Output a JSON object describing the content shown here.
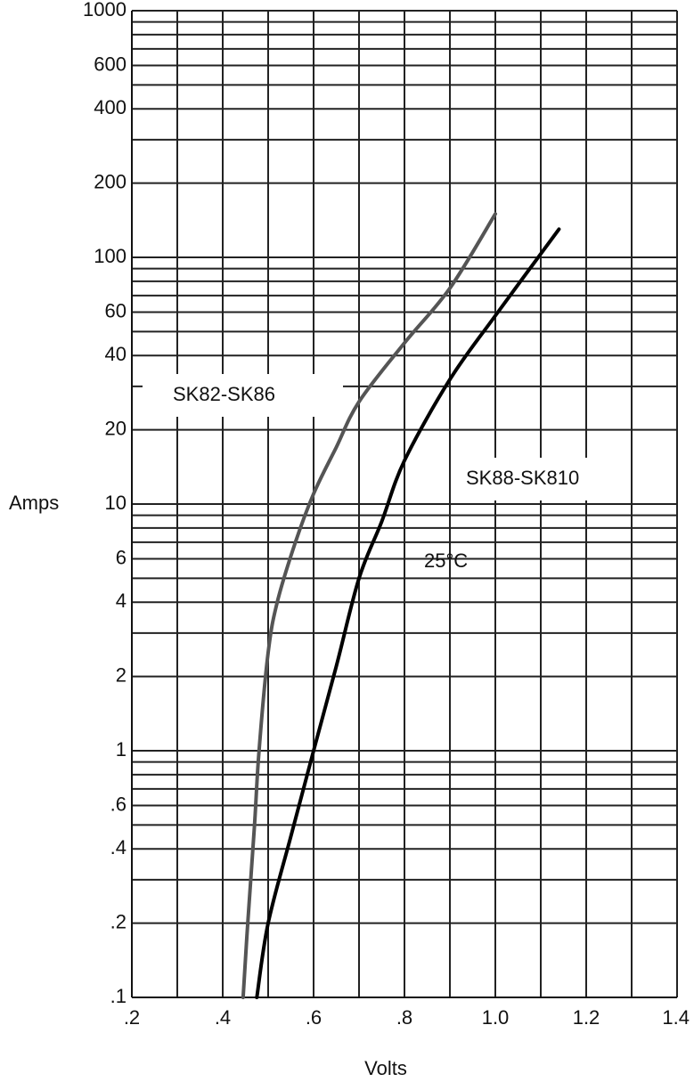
{
  "chart_data": {
    "type": "line",
    "title": "",
    "xlabel": "Volts",
    "ylabel": "Amps",
    "xlim": [
      0.2,
      1.4
    ],
    "ylim": [
      0.1,
      1000
    ],
    "yscale": "log",
    "grid": true,
    "x_tick_labels": [
      ".2",
      ".4",
      ".6",
      ".8",
      "1.0",
      "1.2",
      "1.4"
    ],
    "y_tick_labels": [
      {
        "value": 1000,
        "label": "1000"
      },
      {
        "value": 600,
        "label": "600"
      },
      {
        "value": 400,
        "label": "400"
      },
      {
        "value": 200,
        "label": "200"
      },
      {
        "value": 100,
        "label": "100"
      },
      {
        "value": 60,
        "label": "60"
      },
      {
        "value": 40,
        "label": "40"
      },
      {
        "value": 20,
        "label": "20"
      },
      {
        "value": 10,
        "label": "10"
      },
      {
        "value": 6,
        "label": "6"
      },
      {
        "value": 4,
        "label": "4"
      },
      {
        "value": 2,
        "label": "2"
      },
      {
        "value": 1,
        "label": "1"
      },
      {
        "value": 0.6,
        "label": ".6"
      },
      {
        "value": 0.4,
        "label": ".4"
      },
      {
        "value": 0.2,
        "label": ".2"
      },
      {
        "value": 0.1,
        "label": ".1"
      }
    ],
    "series": [
      {
        "name": "SK82-SK86",
        "color": "#555555",
        "points": [
          [
            0.445,
            0.1
          ],
          [
            0.455,
            0.2
          ],
          [
            0.47,
            0.5
          ],
          [
            0.48,
            1
          ],
          [
            0.5,
            2.5
          ],
          [
            0.52,
            4
          ],
          [
            0.56,
            7
          ],
          [
            0.6,
            11
          ],
          [
            0.65,
            17
          ],
          [
            0.7,
            26
          ],
          [
            0.8,
            45
          ],
          [
            0.9,
            75
          ],
          [
            1.0,
            150
          ]
        ]
      },
      {
        "name": "SK88-SK810",
        "color": "#000000",
        "points": [
          [
            0.475,
            0.1
          ],
          [
            0.5,
            0.2
          ],
          [
            0.55,
            0.45
          ],
          [
            0.6,
            1
          ],
          [
            0.65,
            2.2
          ],
          [
            0.7,
            5
          ],
          [
            0.75,
            8.5
          ],
          [
            0.8,
            15
          ],
          [
            0.9,
            32
          ],
          [
            1.0,
            58
          ],
          [
            1.14,
            130
          ]
        ]
      }
    ],
    "annotations": [
      {
        "text": "25°C",
        "x": 0.85,
        "y": 6
      }
    ]
  }
}
